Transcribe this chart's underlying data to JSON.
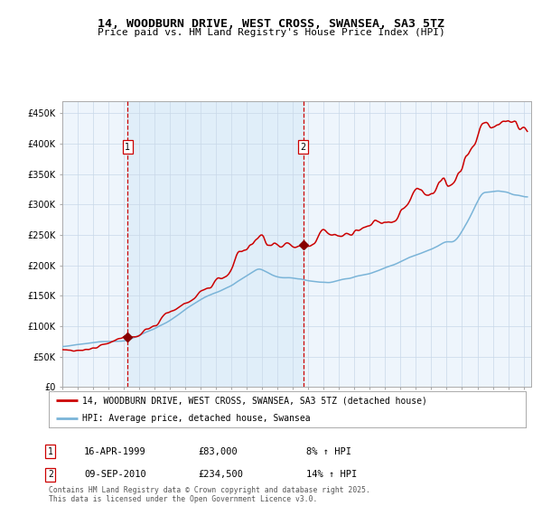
{
  "title": "14, WOODBURN DRIVE, WEST CROSS, SWANSEA, SA3 5TZ",
  "subtitle": "Price paid vs. HM Land Registry's House Price Index (HPI)",
  "legend_line1": "14, WOODBURN DRIVE, WEST CROSS, SWANSEA, SA3 5TZ (detached house)",
  "legend_line2": "HPI: Average price, detached house, Swansea",
  "sale1_date_label": "16-APR-1999",
  "sale1_price": 83000,
  "sale1_label": "8% ↑ HPI",
  "sale2_date_label": "09-SEP-2010",
  "sale2_price": 234500,
  "sale2_label": "14% ↑ HPI",
  "footer": "Contains HM Land Registry data © Crown copyright and database right 2025.\nThis data is licensed under the Open Government Licence v3.0.",
  "hpi_color": "#7ab4d8",
  "price_color": "#cc0000",
  "vline_color": "#cc0000",
  "marker_color": "#880000",
  "shade_color": "#d8eaf7",
  "ylim": [
    0,
    470000
  ],
  "yticks": [
    0,
    50000,
    100000,
    150000,
    200000,
    250000,
    300000,
    350000,
    400000,
    450000
  ],
  "background_color": "#ffffff",
  "plot_bg_color": "#eef5fc"
}
